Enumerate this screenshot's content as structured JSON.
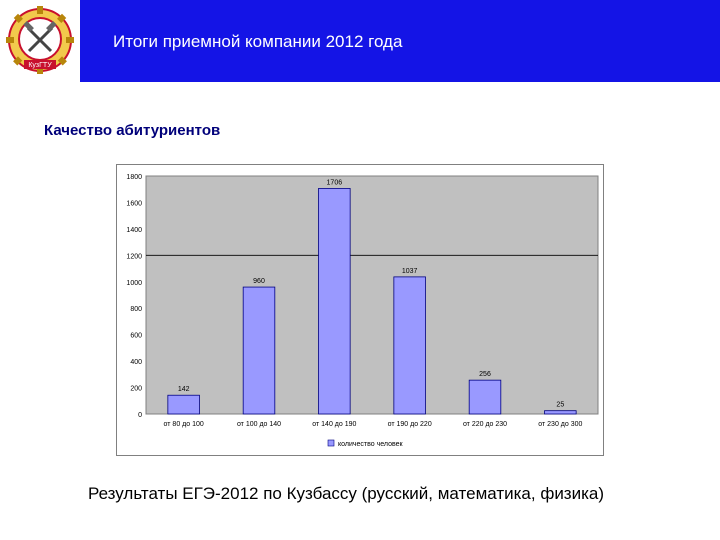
{
  "header": {
    "title": "Итоги приемной компании 2012 года",
    "logo_icon": "gear-hammers-emblem-icon",
    "logo_text": "КузГТУ"
  },
  "colors": {
    "header_bar": "#1414e6",
    "subtitle": "#00007a",
    "plot_bg": "#c0c0c0",
    "bar_fill": "#9999ff",
    "bar_stroke": "#000080"
  },
  "subtitle": "Качество абитуриентов",
  "caption": "Результаты ЕГЭ-2012 по Кузбассу (русский, математика, физика)",
  "chart_data": {
    "type": "bar",
    "categories": [
      "от 80 до 100",
      "от 100 до 140",
      "от 140 до 190",
      "от 190 до 220",
      "от 220 до 230",
      "от 230 до 300"
    ],
    "series": [
      {
        "name": "количество человек",
        "values": [
          142,
          960,
          1706,
          1037,
          256,
          25
        ]
      }
    ],
    "data_labels": [
      "142",
      "960",
      "1706",
      "1037",
      "256",
      "25"
    ],
    "yticks": [
      "0",
      "200",
      "400",
      "600",
      "800",
      "1000",
      "1200",
      "1400",
      "1600",
      "1800"
    ],
    "ylim": [
      0,
      1800
    ],
    "grid": "horizontal",
    "legend": "bottom"
  }
}
